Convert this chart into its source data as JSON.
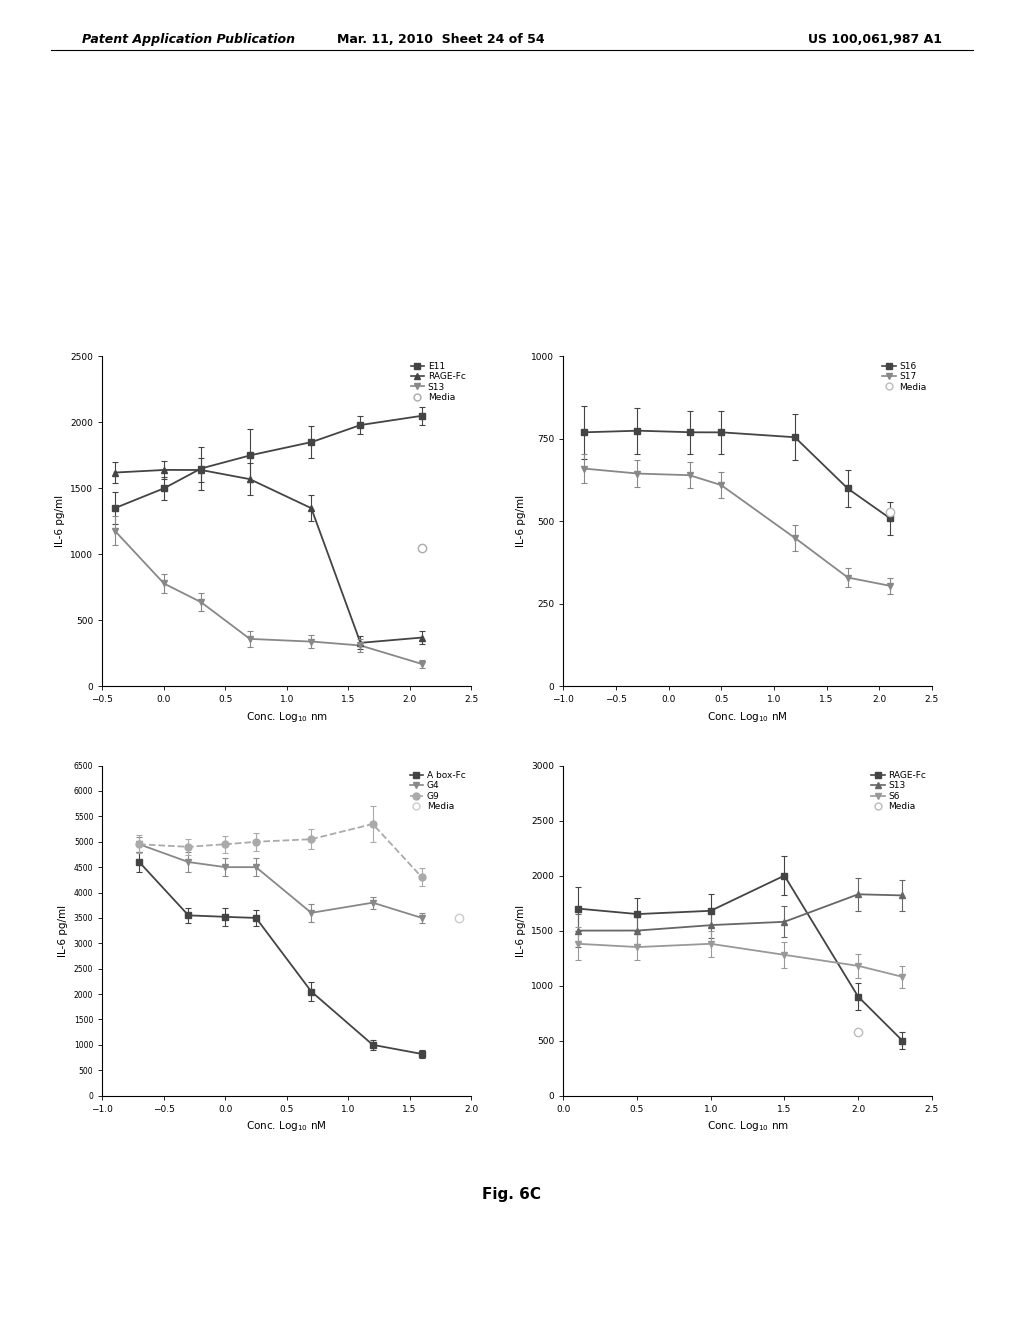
{
  "header_left": "Patent Application Publication",
  "header_mid": "Mar. 11, 2010  Sheet 24 of 54",
  "header_right": "US 100,061,987 A1",
  "figure_label": "Fig. 6C",
  "plot1": {
    "xlabel": "Conc. Log$_{10}$ nm",
    "ylabel": "IL-6 pg/ml",
    "xlim": [
      -0.5,
      2.5
    ],
    "xticks": [
      -0.5,
      0.0,
      0.5,
      1.0,
      1.5,
      2.0,
      2.5
    ],
    "ylim": [
      0,
      2500
    ],
    "yticks": [
      0,
      500,
      1000,
      1500,
      2000,
      2500
    ],
    "series": [
      {
        "label": "E11",
        "color": "#444444",
        "marker": "s",
        "linestyle": "-",
        "x": [
          -0.4,
          0.0,
          0.3,
          0.7,
          1.2,
          1.6,
          2.1
        ],
        "y": [
          1350,
          1500,
          1650,
          1750,
          1850,
          1980,
          2050
        ],
        "yerr": [
          120,
          90,
          160,
          200,
          120,
          70,
          70
        ]
      },
      {
        "label": "RAGE-Fc",
        "color": "#444444",
        "marker": "^",
        "linestyle": "-",
        "x": [
          -0.4,
          0.0,
          0.3,
          0.7,
          1.2,
          1.6,
          2.1
        ],
        "y": [
          1620,
          1640,
          1640,
          1570,
          1350,
          330,
          370
        ],
        "yerr": [
          80,
          70,
          90,
          120,
          100,
          50,
          50
        ]
      },
      {
        "label": "S13",
        "color": "#888888",
        "marker": "v",
        "linestyle": "-",
        "x": [
          -0.4,
          0.0,
          0.3,
          0.7,
          1.2,
          1.6,
          2.1
        ],
        "y": [
          1180,
          780,
          640,
          360,
          340,
          310,
          170
        ],
        "yerr": [
          110,
          70,
          70,
          60,
          50,
          50,
          30
        ]
      },
      {
        "label": "Media",
        "color": "#aaaaaa",
        "marker": "o",
        "linestyle": "none",
        "x": [
          2.1
        ],
        "y": [
          1050
        ],
        "yerr": [
          0
        ]
      }
    ]
  },
  "plot2": {
    "xlabel": "Conc. Log$_{10}$ nM",
    "ylabel": "IL-6 pg/ml",
    "xlim": [
      -1.0,
      2.5
    ],
    "xticks": [
      -1.0,
      -0.5,
      0.0,
      0.5,
      1.0,
      1.5,
      2.0,
      2.5
    ],
    "ylim": [
      0,
      1000
    ],
    "yticks": [
      0,
      250,
      500,
      750,
      1000
    ],
    "legend_labels": [
      "S16",
      "S17",
      "Media"
    ],
    "series": [
      {
        "label": "S16",
        "color": "#444444",
        "marker": "s",
        "linestyle": "-",
        "x": [
          -0.8,
          -0.3,
          0.2,
          0.5,
          1.2,
          1.7,
          2.1
        ],
        "y": [
          770,
          775,
          770,
          770,
          755,
          600,
          510
        ],
        "yerr": [
          80,
          70,
          65,
          65,
          70,
          55,
          50
        ]
      },
      {
        "label": "S17",
        "color": "#888888",
        "marker": "v",
        "linestyle": "-",
        "x": [
          -0.8,
          -0.3,
          0.2,
          0.5,
          1.2,
          1.7,
          2.1
        ],
        "y": [
          660,
          645,
          640,
          610,
          450,
          330,
          305
        ],
        "yerr": [
          45,
          40,
          40,
          40,
          40,
          30,
          25
        ]
      },
      {
        "label": "Media",
        "color": "#bbbbbb",
        "marker": "o",
        "linestyle": "none",
        "x": [
          2.1
        ],
        "y": [
          530
        ],
        "yerr": [
          0
        ]
      }
    ]
  },
  "plot3": {
    "xlabel": "Conc. Log$_{10}$ nM",
    "ylabel": "IL-6 pg/ml",
    "xlim": [
      -1.0,
      2.0
    ],
    "xticks": [
      -1.0,
      -0.5,
      0.0,
      0.5,
      1.0,
      1.5,
      2.0
    ],
    "ylim": [
      0,
      6500
    ],
    "yticks": [
      0,
      500,
      1000,
      1500,
      2000,
      2500,
      3000,
      3500,
      4000,
      4500,
      5000,
      5500,
      6000,
      6500
    ],
    "series": [
      {
        "label": "A box-Fc",
        "color": "#444444",
        "marker": "s",
        "linestyle": "-",
        "x": [
          -0.7,
          -0.3,
          0.0,
          0.25,
          0.7,
          1.2,
          1.6
        ],
        "y": [
          4600,
          3550,
          3520,
          3500,
          2050,
          1000,
          820
        ],
        "yerr": [
          200,
          150,
          170,
          160,
          180,
          100,
          80
        ]
      },
      {
        "label": "G4",
        "color": "#888888",
        "marker": "v",
        "linestyle": "-",
        "x": [
          -0.7,
          -0.3,
          0.0,
          0.25,
          0.7,
          1.2,
          1.6
        ],
        "y": [
          4950,
          4600,
          4500,
          4500,
          3600,
          3800,
          3500
        ],
        "yerr": [
          150,
          200,
          180,
          180,
          180,
          120,
          100
        ]
      },
      {
        "label": "G9",
        "color": "#aaaaaa",
        "marker": "o",
        "linestyle": "--",
        "x": [
          -0.7,
          -0.3,
          0.0,
          0.25,
          0.7,
          1.2,
          1.6
        ],
        "y": [
          4950,
          4900,
          4950,
          5000,
          5050,
          5350,
          4300
        ],
        "yerr": [
          180,
          160,
          170,
          180,
          200,
          350,
          180
        ]
      },
      {
        "label": "Media",
        "color": "#cccccc",
        "marker": "o",
        "linestyle": "none",
        "x": [
          1.9
        ],
        "y": [
          3500
        ],
        "yerr": [
          0
        ]
      }
    ]
  },
  "plot4": {
    "xlabel": "Conc. Log$_{10}$ nm",
    "ylabel": "IL-6 pg/ml",
    "xlim": [
      0.0,
      2.5
    ],
    "xticks": [
      0.0,
      0.5,
      1.0,
      1.5,
      2.0,
      2.5
    ],
    "ylim": [
      0,
      3000
    ],
    "yticks": [
      0,
      500,
      1000,
      1500,
      2000,
      2500,
      3000
    ],
    "series": [
      {
        "label": "RAGE-Fc",
        "color": "#444444",
        "marker": "s",
        "linestyle": "-",
        "x": [
          0.1,
          0.5,
          1.0,
          1.5,
          2.0,
          2.3
        ],
        "y": [
          1700,
          1650,
          1680,
          2000,
          900,
          500
        ],
        "yerr": [
          200,
          150,
          150,
          180,
          120,
          80
        ]
      },
      {
        "label": "S13",
        "color": "#666666",
        "marker": "^",
        "linestyle": "-",
        "x": [
          0.1,
          0.5,
          1.0,
          1.5,
          2.0,
          2.3
        ],
        "y": [
          1500,
          1500,
          1550,
          1580,
          1830,
          1820
        ],
        "yerr": [
          150,
          120,
          120,
          140,
          150,
          140
        ]
      },
      {
        "label": "S6",
        "color": "#999999",
        "marker": "v",
        "linestyle": "-",
        "x": [
          0.1,
          0.5,
          1.0,
          1.5,
          2.0,
          2.3
        ],
        "y": [
          1380,
          1350,
          1380,
          1280,
          1180,
          1080
        ],
        "yerr": [
          150,
          120,
          120,
          120,
          110,
          100
        ]
      },
      {
        "label": "Media",
        "color": "#bbbbbb",
        "marker": "o",
        "linestyle": "none",
        "x": [
          2.0
        ],
        "y": [
          580
        ],
        "yerr": [
          0
        ]
      }
    ]
  }
}
